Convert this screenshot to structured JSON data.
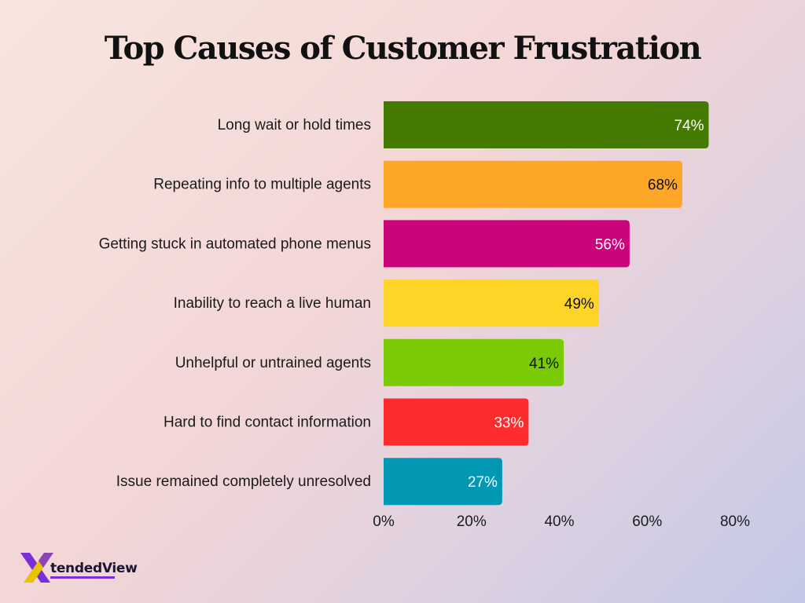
{
  "chart_data": {
    "type": "bar",
    "orientation": "horizontal",
    "title": "Top Causes of Customer Frustration",
    "categories": [
      "Long wait or hold times",
      "Repeating info to multiple agents",
      "Getting stuck in automated phone menus",
      "Inability to reach a live human",
      "Unhelpful or untrained agents",
      "Hard to find contact information",
      "Issue remained completely unresolved"
    ],
    "values": [
      74,
      68,
      56,
      49,
      41,
      33,
      27
    ],
    "data_labels": [
      "74%",
      "68%",
      "56%",
      "49%",
      "41%",
      "33%",
      "27%"
    ],
    "bar_colors": [
      "#457a00",
      "#fda627",
      "#cc047c",
      "#fed527",
      "#7acb05",
      "#fe2c2c",
      "#0297b2"
    ],
    "label_colors": [
      "#ffffff",
      "#111111",
      "#ffffff",
      "#111111",
      "#111111",
      "#ffffff",
      "#ffffff"
    ],
    "xlim": [
      0,
      80
    ],
    "x_ticks": [
      0,
      20,
      40,
      60,
      80
    ],
    "x_tick_labels": [
      "0%",
      "20%",
      "40%",
      "60%",
      "80%"
    ],
    "xlabel": "",
    "ylabel": "",
    "grid": false,
    "legend": "none"
  },
  "logo": {
    "mark": "X",
    "wordmark": "tendedView",
    "brand_colors": [
      "#7b2fd6",
      "#e8c400"
    ]
  }
}
